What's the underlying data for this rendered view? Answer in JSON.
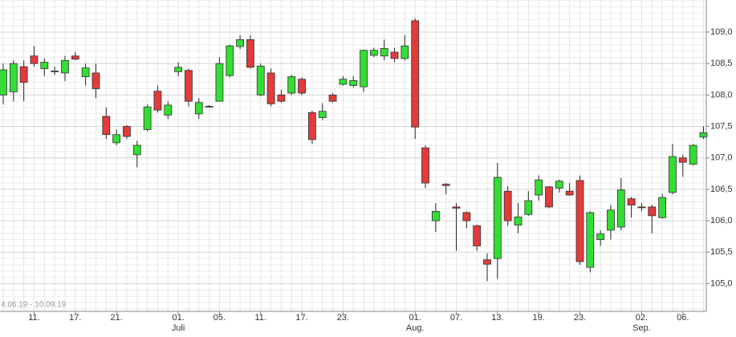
{
  "chart_data": {
    "type": "candlestick",
    "range_label": "4.06.19 - 10.09.19",
    "categories": [
      null,
      null,
      null,
      "11.",
      null,
      null,
      null,
      "17.",
      null,
      null,
      null,
      "21.",
      null,
      null,
      null,
      null,
      null,
      "01.",
      null,
      null,
      null,
      "05.",
      null,
      null,
      null,
      "11.",
      null,
      null,
      null,
      "17.",
      null,
      null,
      null,
      "23.",
      null,
      null,
      null,
      null,
      null,
      null,
      "01.",
      null,
      null,
      null,
      "07.",
      null,
      null,
      null,
      "13.",
      null,
      null,
      null,
      "19.",
      null,
      null,
      null,
      "23.",
      null,
      null,
      null,
      null,
      null,
      "02.",
      null,
      null,
      null,
      "06.",
      null,
      null
    ],
    "category_sublabels": [
      null,
      null,
      null,
      null,
      null,
      null,
      null,
      null,
      null,
      null,
      null,
      null,
      null,
      null,
      null,
      null,
      null,
      "Juli",
      null,
      null,
      null,
      null,
      null,
      null,
      null,
      null,
      null,
      null,
      null,
      null,
      null,
      null,
      null,
      null,
      null,
      null,
      null,
      null,
      null,
      null,
      "Aug.",
      null,
      null,
      null,
      null,
      null,
      null,
      null,
      null,
      null,
      null,
      null,
      null,
      null,
      null,
      null,
      null,
      null,
      null,
      null,
      null,
      null,
      "Sep.",
      null,
      null,
      null,
      null,
      null,
      null
    ],
    "open": [
      108.0,
      108.05,
      108.45,
      108.62,
      108.42,
      108.38,
      108.35,
      108.62,
      108.29,
      108.35,
      107.66,
      107.24,
      107.5,
      107.05,
      107.45,
      108.06,
      107.68,
      108.37,
      108.39,
      107.7,
      107.82,
      107.9,
      108.31,
      108.77,
      108.88,
      108.0,
      108.35,
      108.0,
      108.03,
      108.25,
      107.72,
      107.64,
      108.0,
      108.17,
      108.15,
      108.13,
      108.63,
      108.62,
      108.68,
      108.58,
      109.18,
      107.16,
      106.0,
      106.58,
      106.22,
      106.13,
      105.92,
      105.38,
      105.4,
      106.47,
      105.93,
      106.1,
      106.41,
      106.54,
      106.52,
      106.47,
      106.64,
      105.26,
      105.7,
      105.85,
      105.9,
      106.35,
      106.22,
      106.22,
      106.05,
      106.45,
      107.0,
      106.9,
      107.33
    ],
    "high": [
      108.5,
      108.55,
      108.55,
      108.78,
      108.58,
      108.45,
      108.62,
      108.68,
      108.5,
      108.5,
      107.8,
      107.45,
      107.52,
      107.27,
      107.85,
      108.15,
      107.9,
      108.52,
      108.42,
      107.95,
      107.84,
      108.6,
      108.8,
      108.95,
      108.95,
      108.5,
      108.42,
      108.08,
      108.32,
      108.28,
      107.75,
      107.87,
      108.03,
      108.3,
      108.3,
      108.72,
      108.75,
      108.88,
      108.75,
      108.95,
      109.22,
      107.2,
      106.28,
      106.6,
      106.28,
      106.15,
      105.94,
      105.48,
      106.92,
      106.55,
      106.28,
      106.47,
      106.72,
      106.55,
      106.65,
      106.6,
      106.72,
      106.15,
      105.85,
      106.25,
      106.68,
      106.38,
      106.28,
      106.25,
      106.43,
      107.22,
      107.05,
      107.22,
      107.5
    ],
    "low": [
      107.85,
      107.9,
      107.9,
      108.45,
      108.3,
      108.32,
      108.22,
      108.55,
      108.15,
      107.95,
      107.3,
      107.2,
      107.3,
      106.85,
      107.42,
      107.72,
      107.62,
      108.3,
      107.82,
      107.62,
      107.8,
      107.9,
      108.28,
      108.73,
      108.42,
      107.98,
      107.82,
      107.88,
      108.0,
      108.0,
      107.22,
      107.6,
      107.88,
      108.15,
      108.12,
      108.05,
      108.6,
      108.55,
      108.52,
      108.55,
      107.3,
      106.52,
      105.82,
      106.42,
      105.52,
      105.88,
      105.52,
      105.04,
      105.08,
      105.92,
      105.8,
      106.08,
      106.32,
      106.2,
      106.45,
      106.4,
      105.3,
      105.18,
      105.6,
      105.7,
      105.85,
      106.05,
      106.15,
      105.8,
      106.03,
      106.42,
      106.7,
      106.88,
      107.3
    ],
    "close": [
      108.4,
      108.5,
      108.2,
      108.5,
      108.52,
      108.38,
      108.55,
      108.57,
      108.43,
      108.1,
      107.37,
      107.37,
      107.34,
      107.2,
      107.81,
      107.76,
      107.84,
      108.44,
      107.9,
      107.88,
      107.82,
      108.5,
      108.78,
      108.88,
      108.44,
      108.46,
      107.86,
      107.9,
      108.29,
      108.03,
      107.29,
      107.74,
      107.9,
      108.25,
      108.23,
      108.71,
      108.71,
      108.74,
      108.58,
      108.78,
      107.49,
      106.6,
      106.15,
      106.56,
      106.2,
      106.0,
      105.6,
      105.31,
      106.69,
      106.0,
      106.06,
      106.32,
      106.65,
      106.22,
      106.63,
      106.41,
      105.35,
      106.13,
      105.79,
      106.17,
      106.49,
      106.25,
      106.21,
      106.08,
      106.37,
      107.02,
      106.93,
      107.2,
      107.4
    ],
    "up_color": "#33dd33",
    "down_color": "#e23b3b",
    "ylim": [
      104.56,
      109.51
    ],
    "yticks": [
      {
        "value": 105,
        "label": "105,0"
      },
      {
        "value": 105.5,
        "label": "105,5"
      },
      {
        "value": 106,
        "label": "106,0"
      },
      {
        "value": 106.5,
        "label": "106,5"
      },
      {
        "value": 107,
        "label": "107,0"
      },
      {
        "value": 107.5,
        "label": "107,5"
      },
      {
        "value": 108,
        "label": "108,0"
      },
      {
        "value": 108.5,
        "label": "108,5"
      },
      {
        "value": 109,
        "label": "109,0"
      }
    ],
    "minor_grid_step": 0.1,
    "grid": true
  }
}
